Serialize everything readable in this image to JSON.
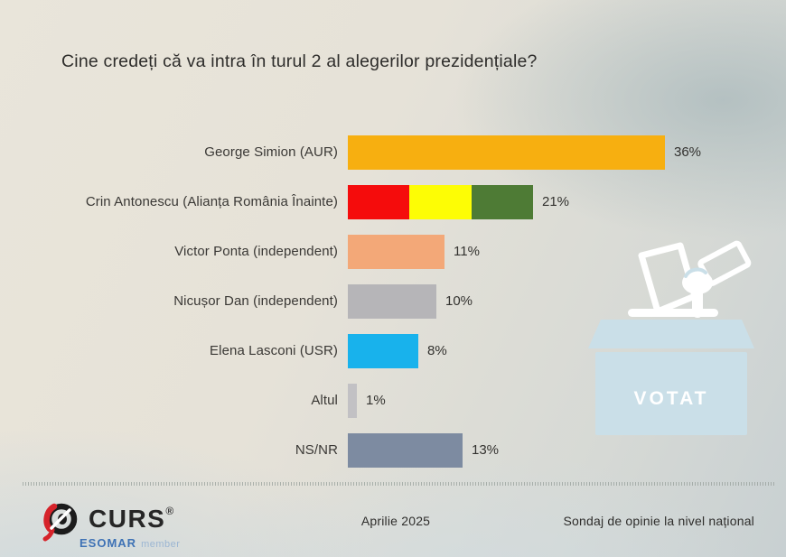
{
  "title": "Cine credeți că va intra în turul 2 al alegerilor prezidențiale?",
  "chart_data": {
    "type": "bar",
    "orientation": "horizontal",
    "categories": [
      "George Simion (AUR)",
      "Crin Antonescu (Alianța România Înainte)",
      "Victor Ponta (independent)",
      "Nicușor Dan (independent)",
      "Elena Lasconi (USR)",
      "Altul",
      "NS/NR"
    ],
    "values": [
      36,
      21,
      11,
      10,
      8,
      1,
      13
    ],
    "value_labels": [
      "36%",
      "21%",
      "11%",
      "10%",
      "8%",
      "1%",
      "13%"
    ],
    "bar_colors": [
      "#f7af10",
      [
        "#f50c0c",
        "#fdfd05",
        "#4e7b35"
      ],
      "#f3a878",
      "#b6b5b8",
      "#18b2ec",
      "#c2c1c4",
      "#7d8ba1"
    ],
    "xlim": [
      0,
      36
    ],
    "grid": false,
    "legend": false,
    "title": "Cine credeți că va intra în turul 2 al alegerilor prezidențiale?"
  },
  "ballot_box": {
    "label": "VOTAT",
    "box_color": "#cadfe8",
    "icon_color": "#ffffff"
  },
  "footer": {
    "logo_text": "CURS",
    "registered": "®",
    "esomar": "ESOMAR",
    "member": "member",
    "date": "Aprilie 2025",
    "note": "Sondaj de opinie la nivel național"
  }
}
